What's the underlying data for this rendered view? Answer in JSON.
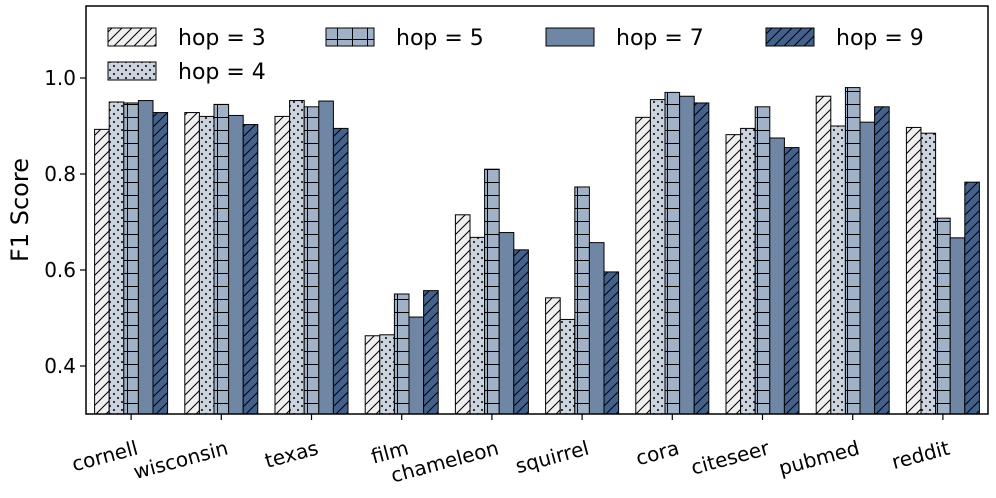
{
  "chart_data": {
    "type": "bar",
    "title": "",
    "xlabel": "",
    "ylabel": "F1 Score",
    "ylim": [
      0.3,
      1.15
    ],
    "yticks": [
      0.4,
      0.6,
      0.8,
      1.0
    ],
    "ytick_labels": [
      "0.4",
      "0.6",
      "0.8",
      "1.0"
    ],
    "grid": false,
    "legend_position": "top",
    "categories": [
      "cornell",
      "wisconsin",
      "texas",
      "film",
      "chameleon",
      "squirrel",
      "cora",
      "citeseer",
      "pubmed",
      "reddit"
    ],
    "series": [
      {
        "name": "hop = 3",
        "fill": "#f0f0f0",
        "hatch": "diagonal",
        "values": [
          0.893,
          0.928,
          0.92,
          0.463,
          0.715,
          0.542,
          0.918,
          0.882,
          0.962,
          0.897
        ]
      },
      {
        "name": "hop = 4",
        "fill": "#ccd5df",
        "hatch": "dots",
        "values": [
          0.95,
          0.92,
          0.953,
          0.465,
          0.668,
          0.497,
          0.955,
          0.895,
          0.9,
          0.885
        ]
      },
      {
        "name": "hop = 5",
        "fill": "#a2b2c6",
        "hatch": "grid",
        "values": [
          0.948,
          0.945,
          0.94,
          0.55,
          0.81,
          0.773,
          0.97,
          0.94,
          0.98,
          0.708
        ]
      },
      {
        "name": "hop = 7",
        "fill": "#7086a5",
        "hatch": "none",
        "values": [
          0.953,
          0.922,
          0.952,
          0.502,
          0.678,
          0.657,
          0.962,
          0.875,
          0.908,
          0.667
        ]
      },
      {
        "name": "hop = 9",
        "fill": "#44618b",
        "hatch": "diagonal",
        "values": [
          0.928,
          0.903,
          0.895,
          0.557,
          0.642,
          0.596,
          0.948,
          0.855,
          0.94,
          0.783
        ]
      }
    ]
  }
}
